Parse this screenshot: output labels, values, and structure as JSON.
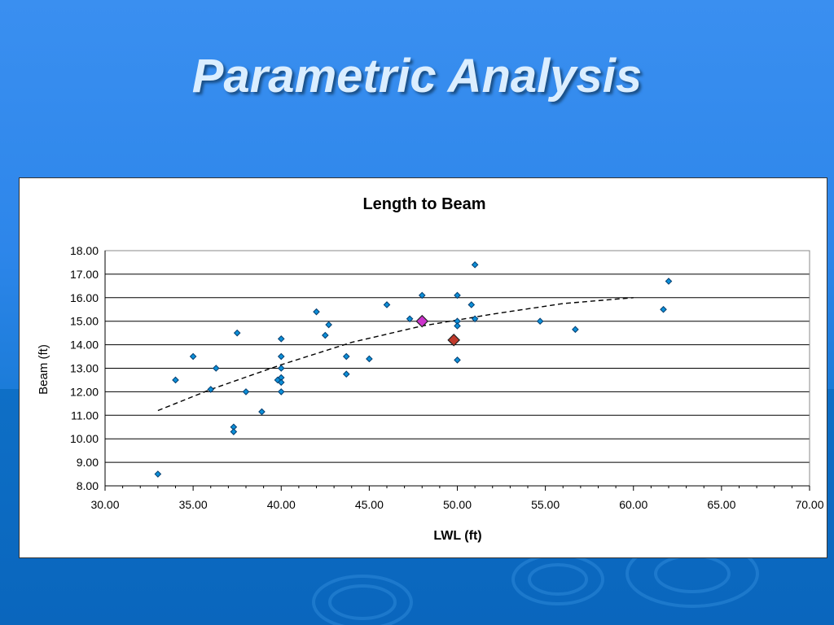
{
  "slide": {
    "title": "Parametric Analysis"
  },
  "chart_data": {
    "type": "scatter",
    "title": "Length to Beam",
    "xlabel": "LWL (ft)",
    "ylabel": "Beam (ft)",
    "xlim": [
      30,
      70
    ],
    "ylim": [
      8,
      18
    ],
    "x_ticks": [
      "30.00",
      "35.00",
      "40.00",
      "45.00",
      "50.00",
      "55.00",
      "60.00",
      "65.00",
      "70.00"
    ],
    "y_ticks": [
      "8.00",
      "9.00",
      "10.00",
      "11.00",
      "12.00",
      "13.00",
      "14.00",
      "15.00",
      "16.00",
      "17.00",
      "18.00"
    ],
    "grid": "horizontal",
    "legend": "none",
    "series": [
      {
        "marker": "small diamond",
        "color": "#0c8fd8",
        "points": [
          [
            33.0,
            8.5
          ],
          [
            34.0,
            12.5
          ],
          [
            35.0,
            13.5
          ],
          [
            36.0,
            12.1
          ],
          [
            36.3,
            13.0
          ],
          [
            37.3,
            10.5
          ],
          [
            37.3,
            10.3
          ],
          [
            37.5,
            14.5
          ],
          [
            38.0,
            12.0
          ],
          [
            38.9,
            11.15
          ],
          [
            39.8,
            12.5
          ],
          [
            40.0,
            14.25
          ],
          [
            40.0,
            13.5
          ],
          [
            40.0,
            13.0
          ],
          [
            40.0,
            12.6
          ],
          [
            40.0,
            12.4
          ],
          [
            40.0,
            12.0
          ],
          [
            42.0,
            15.4
          ],
          [
            42.5,
            14.4
          ],
          [
            42.7,
            14.85
          ],
          [
            43.7,
            13.5
          ],
          [
            43.7,
            12.75
          ],
          [
            45.0,
            13.4
          ],
          [
            46.0,
            15.7
          ],
          [
            47.3,
            15.1
          ],
          [
            48.0,
            16.1
          ],
          [
            50.0,
            16.1
          ],
          [
            50.0,
            15.0
          ],
          [
            50.0,
            14.8
          ],
          [
            50.0,
            13.35
          ],
          [
            50.8,
            15.7
          ],
          [
            51.0,
            17.4
          ],
          [
            51.0,
            15.1
          ],
          [
            54.7,
            15.0
          ],
          [
            56.7,
            14.65
          ],
          [
            61.7,
            15.5
          ],
          [
            62.0,
            16.7
          ]
        ]
      },
      {
        "marker": "large diamond",
        "color": "#cc33cc",
        "points": [
          [
            48.0,
            15.0
          ]
        ]
      },
      {
        "marker": "large diamond",
        "color": "#c0392b",
        "points": [
          [
            49.8,
            14.2
          ]
        ]
      }
    ],
    "trendline": {
      "style": "dashed",
      "color": "#000000",
      "points": [
        [
          33.0,
          11.2
        ],
        [
          36.0,
          12.1
        ],
        [
          40.0,
          13.15
        ],
        [
          44.0,
          14.1
        ],
        [
          48.0,
          14.8
        ],
        [
          52.0,
          15.3
        ],
        [
          56.0,
          15.75
        ],
        [
          60.0,
          16.0
        ]
      ]
    }
  }
}
